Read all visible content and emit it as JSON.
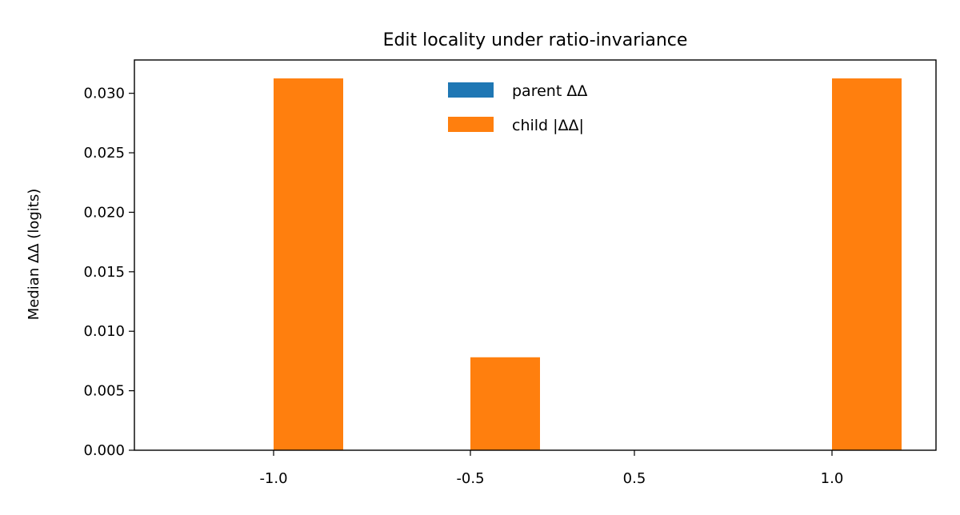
{
  "chart_data": {
    "type": "bar",
    "title": "Edit locality under ratio-invariance",
    "xlabel": "",
    "ylabel": "Median ΔΔ (logits)",
    "categories": [
      "-1.0",
      "-0.5",
      "0.5",
      "1.0"
    ],
    "series": [
      {
        "name": "parent ΔΔ",
        "color": "#1f77b4",
        "values": [
          0,
          0,
          0,
          0
        ]
      },
      {
        "name": "child |ΔΔ|",
        "color": "#ff7f0e",
        "values": [
          0.03125,
          0.0078125,
          0,
          0.03125
        ]
      }
    ],
    "ylim": [
      0,
      0.0328
    ],
    "yticks": [
      0.0,
      0.005,
      0.01,
      0.015,
      0.02,
      0.025,
      0.03
    ],
    "ytick_labels": [
      "0.000",
      "0.005",
      "0.010",
      "0.015",
      "0.020",
      "0.025",
      "0.030"
    ],
    "grid": false,
    "legend_position": "top-center"
  }
}
